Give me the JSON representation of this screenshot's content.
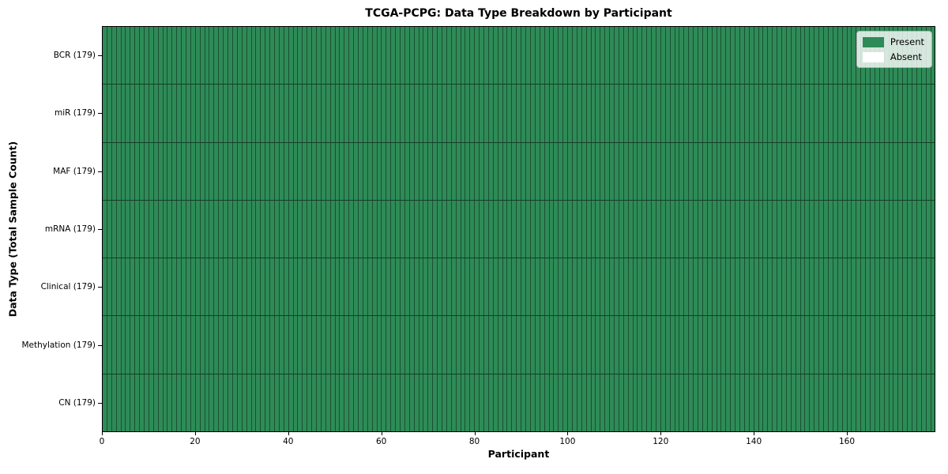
{
  "chart_data": {
    "type": "heatmap",
    "title": "TCGA-PCPG: Data Type Breakdown by Participant",
    "xlabel": "Participant",
    "ylabel": "Data Type (Total Sample Count)",
    "x_range": [
      0,
      179
    ],
    "n_participants": 179,
    "x_ticks": [
      "0",
      "20",
      "40",
      "60",
      "80",
      "100",
      "120",
      "140",
      "160"
    ],
    "x_tick_values": [
      0,
      20,
      40,
      60,
      80,
      100,
      120,
      140,
      160
    ],
    "rows": [
      {
        "data_type": "BCR",
        "label": "BCR (179)",
        "total_samples": 179,
        "present": 179,
        "absent": 0
      },
      {
        "data_type": "miR",
        "label": "miR (179)",
        "total_samples": 179,
        "present": 179,
        "absent": 0
      },
      {
        "data_type": "MAF",
        "label": "MAF (179)",
        "total_samples": 179,
        "present": 179,
        "absent": 0
      },
      {
        "data_type": "mRNA",
        "label": "mRNA (179)",
        "total_samples": 179,
        "present": 179,
        "absent": 0
      },
      {
        "data_type": "Clinical",
        "label": "Clinical (179)",
        "total_samples": 179,
        "present": 179,
        "absent": 0
      },
      {
        "data_type": "Methylation",
        "label": "Methylation (179)",
        "total_samples": 179,
        "present": 179,
        "absent": 0
      },
      {
        "data_type": "CN",
        "label": "CN (179)",
        "total_samples": 179,
        "present": 179,
        "absent": 0
      }
    ],
    "legend": {
      "position": "upper-right",
      "items": [
        {
          "label": "Present",
          "color": "#2e8b57"
        },
        {
          "label": "Absent",
          "color": "#ffffff"
        }
      ]
    },
    "colors": {
      "present": "#2e8b57",
      "absent": "#ffffff",
      "background": "#ffffff"
    }
  }
}
